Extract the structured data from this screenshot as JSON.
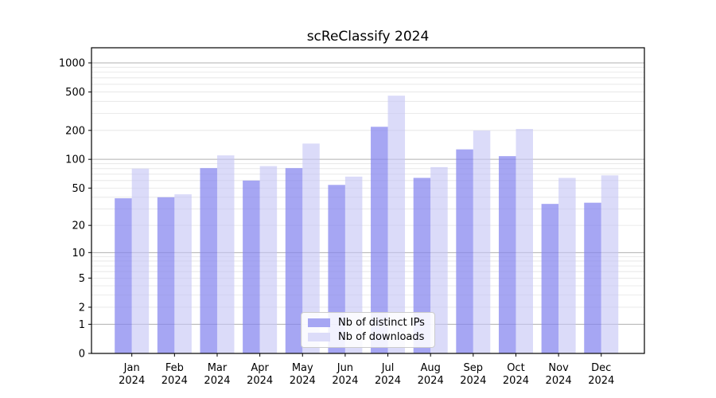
{
  "chart_data": {
    "type": "bar",
    "title": "scReClassify 2024",
    "categories": [
      "Jan",
      "Feb",
      "Mar",
      "Apr",
      "May",
      "Jun",
      "Jul",
      "Aug",
      "Sep",
      "Oct",
      "Nov",
      "Dec"
    ],
    "xtick_second_line": "2024",
    "series": [
      {
        "name": "Nb of distinct IPs",
        "swatch_color": "#a6a6f3",
        "fill": "rgba(132,132,238,0.72)",
        "values": [
          39,
          40,
          81,
          60,
          81,
          54,
          218,
          64,
          127,
          108,
          34,
          35
        ]
      },
      {
        "name": "Nb of downloads",
        "swatch_color": "#dcdcf9",
        "fill": "rgba(197,197,245,0.62)",
        "values": [
          80,
          43,
          110,
          85,
          146,
          66,
          458,
          83,
          199,
          207,
          64,
          68
        ]
      }
    ],
    "yscale": "log1p",
    "ytick_values": [
      0,
      1,
      2,
      5,
      10,
      20,
      50,
      100,
      200,
      500,
      1000
    ],
    "ylim": [
      0,
      1430
    ],
    "grid": true,
    "grid_major_color": "#b0b0b0",
    "grid_minor_color": "#e4e4e4",
    "axis_color": "#000000",
    "legend_position": "lower center inside",
    "xlabel": "",
    "ylabel": ""
  }
}
